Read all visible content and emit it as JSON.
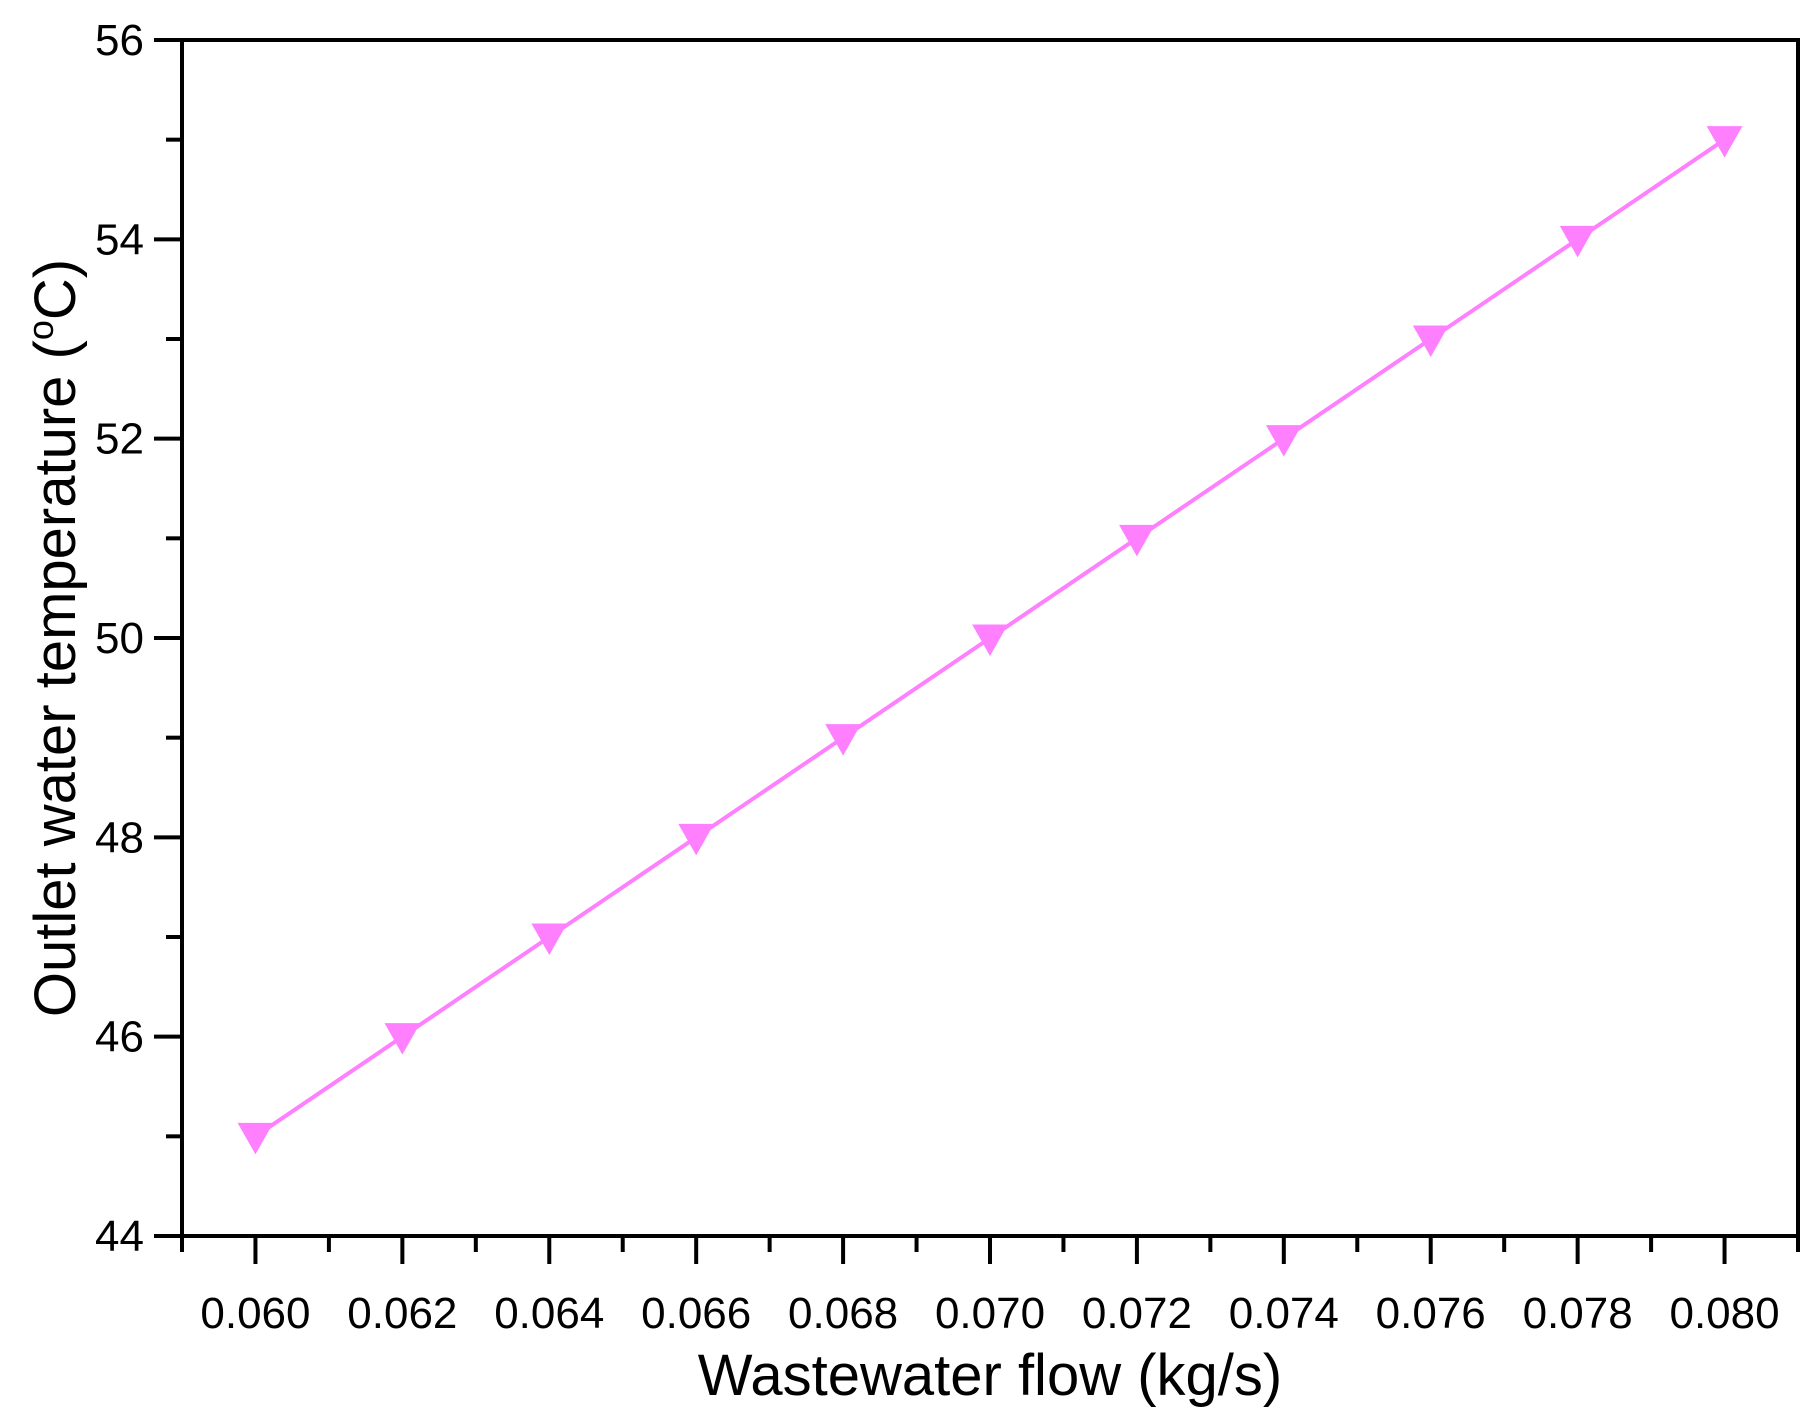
{
  "chart_data": {
    "type": "line",
    "title": "",
    "xlabel": "Wastewater flow (kg/s)",
    "ylabel_main": "Outlet water temperature (",
    "ylabel_sup": "o",
    "ylabel_end": "C)",
    "xlim": [
      0.059,
      0.081
    ],
    "ylim": [
      44,
      56
    ],
    "x_ticks": [
      0.06,
      0.062,
      0.064,
      0.066,
      0.068,
      0.07,
      0.072,
      0.074,
      0.076,
      0.078,
      0.08
    ],
    "x_tick_labels": [
      "0.060",
      "0.062",
      "0.064",
      "0.066",
      "0.068",
      "0.070",
      "0.072",
      "0.074",
      "0.076",
      "0.078",
      "0.080"
    ],
    "y_ticks": [
      44,
      46,
      48,
      50,
      52,
      54,
      56
    ],
    "y_tick_labels": [
      "44",
      "46",
      "48",
      "50",
      "52",
      "54",
      "56"
    ],
    "grid": false,
    "series": [
      {
        "marker": "triangle-down",
        "color": "#ff80ff",
        "x": [
          0.06,
          0.062,
          0.064,
          0.066,
          0.068,
          0.07,
          0.072,
          0.074,
          0.076,
          0.078,
          0.08
        ],
        "y": [
          45,
          46,
          47,
          48,
          49,
          50,
          51,
          52,
          53,
          54,
          55
        ]
      }
    ]
  }
}
